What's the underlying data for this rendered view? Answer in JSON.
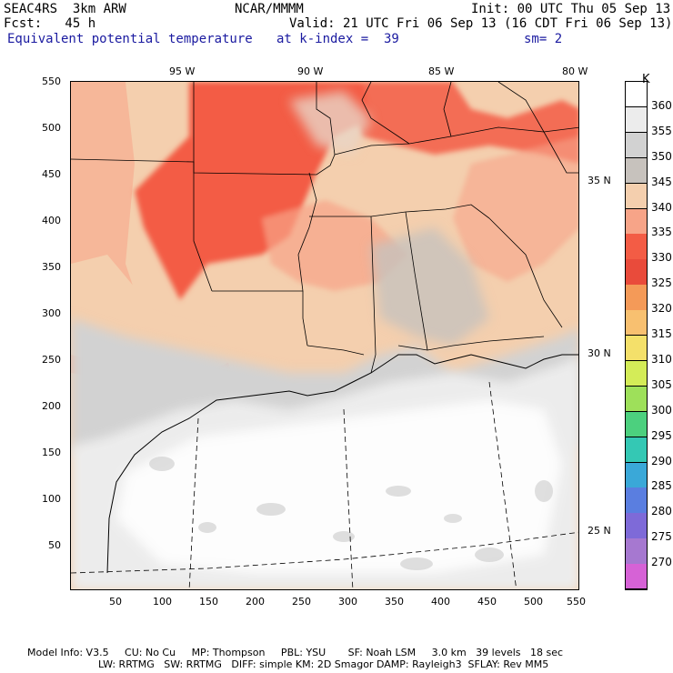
{
  "header": {
    "model": "SEAC4RS  3km ARW",
    "center": "NCAR/MMMM",
    "init": "Init: 00 UTC Thu 05 Sep 13",
    "fcst": "Fcst:   45 h",
    "valid": "Valid: 21 UTC Fri 06 Sep 13 (16 CDT Fri 06 Sep 13)",
    "field": "Equivalent potential temperature",
    "level": "at k-index =  39",
    "smooth": "sm= 2"
  },
  "axes": {
    "lon_labels": [
      "95 W",
      "90 W",
      "85 W",
      "80 W"
    ],
    "lat_labels": [
      "35 N",
      "30 N",
      "25 N"
    ],
    "x_ticks": [
      "50",
      "100",
      "150",
      "200",
      "250",
      "300",
      "350",
      "400",
      "450",
      "500",
      "550"
    ],
    "y_ticks": [
      "550",
      "500",
      "450",
      "400",
      "350",
      "300",
      "250",
      "200",
      "150",
      "100",
      "50"
    ]
  },
  "colorbar": {
    "unit": "K",
    "levels": [
      "360",
      "355",
      "350",
      "345",
      "340",
      "335",
      "330",
      "325",
      "320",
      "315",
      "310",
      "305",
      "300",
      "295",
      "290",
      "285",
      "280",
      "275",
      "270"
    ],
    "colors": [
      "#ffffff",
      "#ececec",
      "#d2d2d2",
      "#c7c2bd",
      "#f4cfae",
      "#f7a488",
      "#f35c45",
      "#e94b3b",
      "#f49a58",
      "#f8c070",
      "#f4e06a",
      "#d4ec58",
      "#9ee05a",
      "#4cd07e",
      "#34c8b4",
      "#3aa8d8",
      "#5a7ee0",
      "#7e6ad8",
      "#a678d0",
      "#d662d6"
    ]
  },
  "footer": {
    "line1": "Model Info: V3.5     CU: No Cu     MP: Thompson     PBL: YSU       SF: Noah LSM     3.0 km   39 levels   18 sec",
    "line2": "LW: RRTMG   SW: RRTMG   DIFF: simple KM: 2D Smagor DAMP: Rayleigh3  SFLAY: Rev MM5"
  }
}
